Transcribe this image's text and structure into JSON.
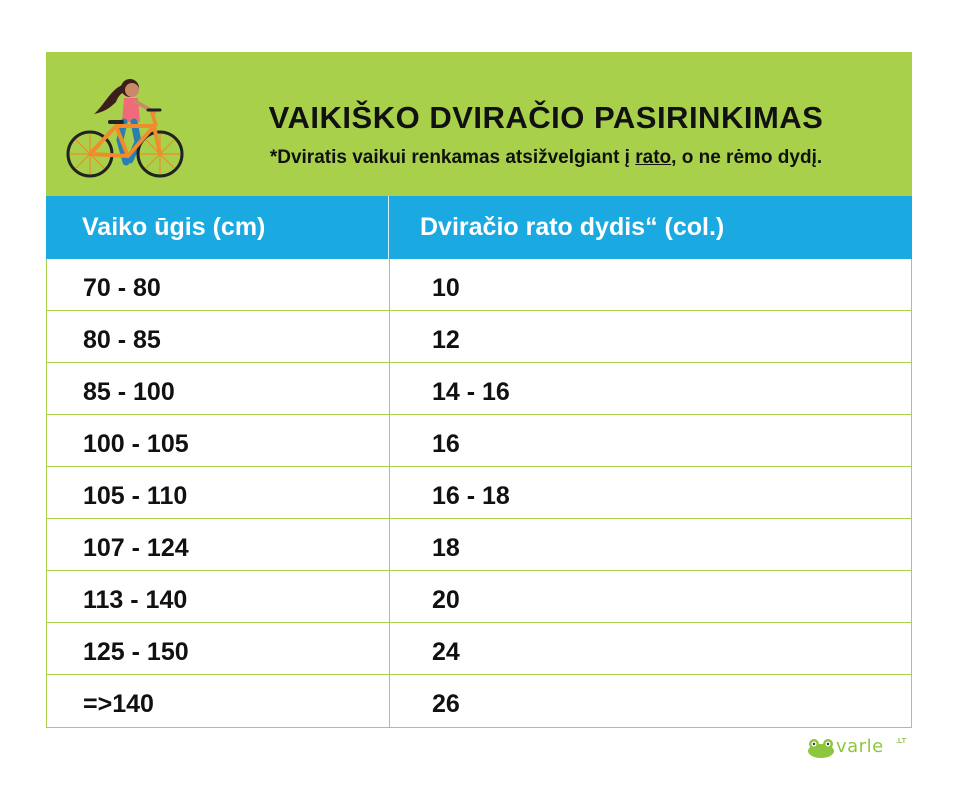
{
  "header": {
    "title": "VAIKIŠKO DVIRAČIO PASIRINKIMAS",
    "subtitle_before": "*Dviratis vaikui renkamas atsižvelgiant į ",
    "subtitle_link": "rato",
    "subtitle_after": ", o ne rėmo dydį.",
    "illustration_icon": "girl-riding-bicycle-icon"
  },
  "table": {
    "columns": [
      "Vaiko ūgis (cm)",
      "Dviračio rato dydis“ (col.)"
    ],
    "rows": [
      [
        "70 - 80",
        "10"
      ],
      [
        "80 - 85",
        "12"
      ],
      [
        "85 - 100",
        "14 - 16"
      ],
      [
        "100 - 105",
        "16"
      ],
      [
        "105 - 110",
        "16 - 18"
      ],
      [
        "107 - 124",
        "18"
      ],
      [
        "113 - 140",
        "20"
      ],
      [
        "125 - 150",
        "24"
      ],
      [
        "=>140",
        "26"
      ]
    ]
  },
  "footer": {
    "brand": "varle",
    "brand_suffix": ".LT",
    "logo_icon": "frog-logo-icon"
  },
  "colors": {
    "banner": "#a8d04a",
    "header_row": "#1aa9e1",
    "grid_lines": "#a8d04a",
    "brand": "#8dc63f"
  }
}
